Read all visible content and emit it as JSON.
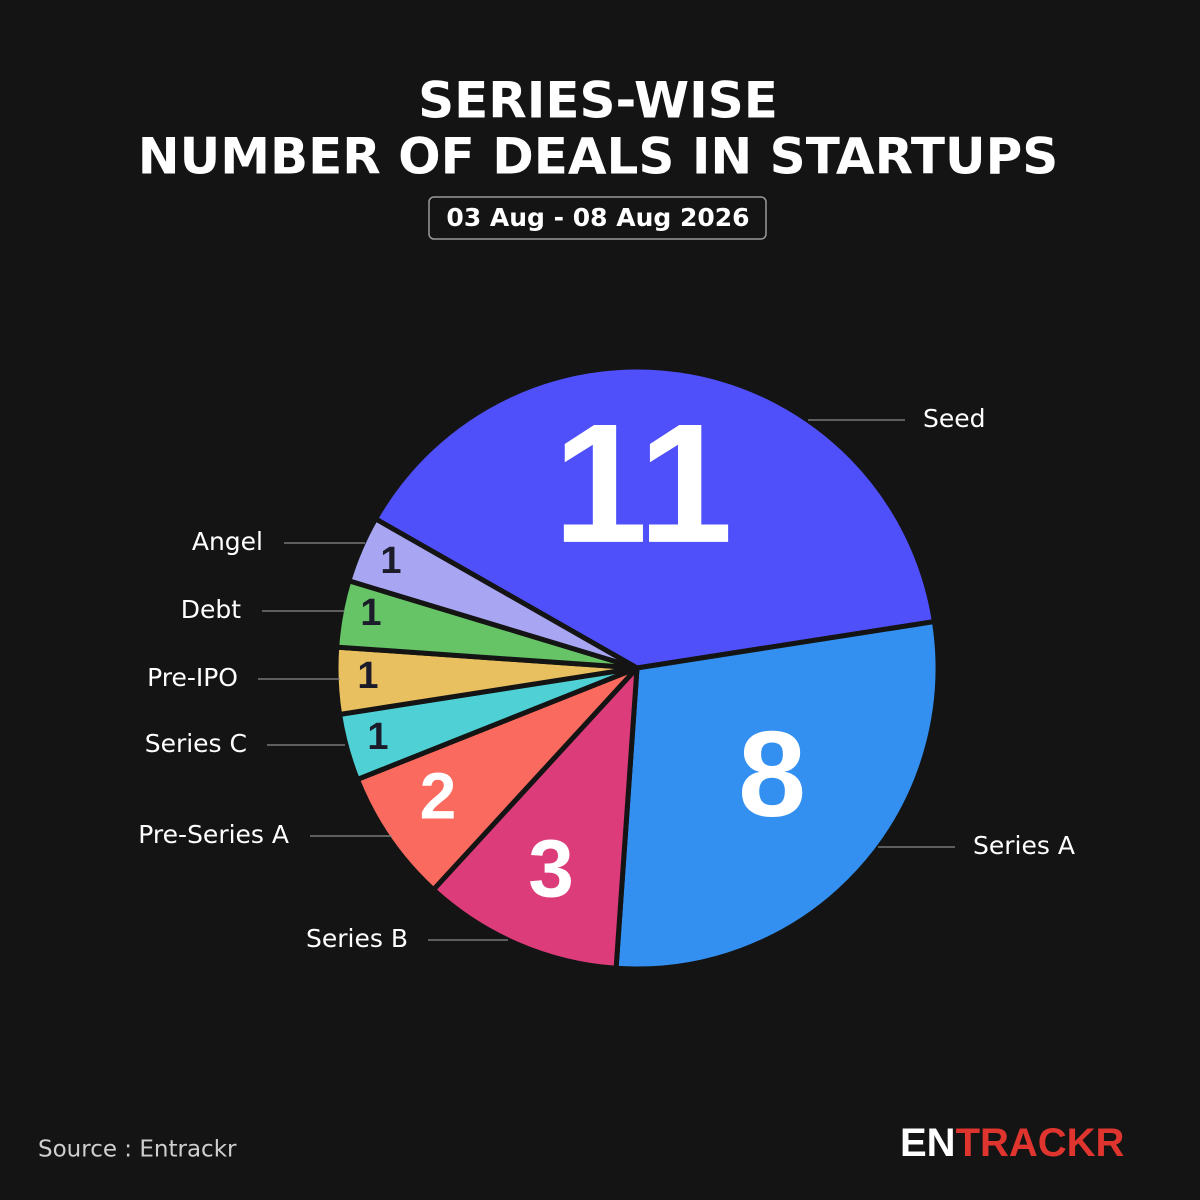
{
  "chart_data": {
    "type": "pie",
    "title": [
      "SERIES-WISE",
      "NUMBER OF DEALS IN STARTUPS"
    ],
    "subtitle": "03 Aug - 08 Aug 2026",
    "categories": [
      "Seed",
      "Series A",
      "Series B",
      "Pre-Series A",
      "Series C",
      "Pre-IPO",
      "Debt",
      "Angel"
    ],
    "values": [
      11,
      8,
      3,
      2,
      1,
      1,
      1,
      1
    ],
    "colors": [
      "#5050fa",
      "#3390f0",
      "#dd3c7a",
      "#fa6a5e",
      "#4ed0d4",
      "#e9c060",
      "#66c466",
      "#a8a6f2"
    ],
    "source": "Source : Entrackr",
    "logo": [
      "EN",
      "TRACKR"
    ]
  }
}
